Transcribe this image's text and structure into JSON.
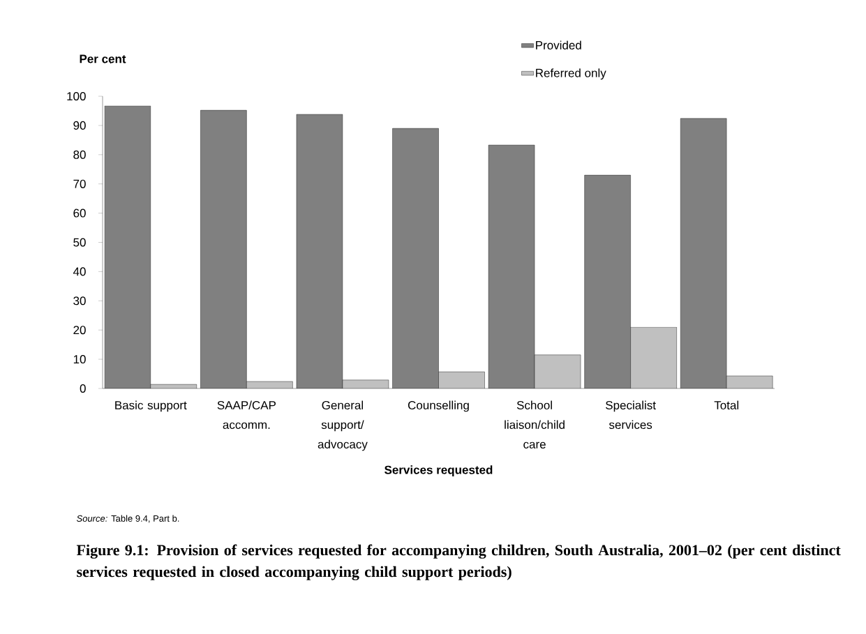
{
  "chart_data": {
    "type": "bar",
    "title": "Figure 9.1: Provision of services requested for accompanying children, South Australia, 2001–02 (per cent distinct services requested in closed accompanying child support periods)",
    "ylabel": "Per cent",
    "xlabel": "Services requested",
    "annotations": [
      "*Source:* Table 9.4, Part b."
    ],
    "categories": [
      "Basic support",
      "SAAP/CAP accomm.",
      "General support/ advocacy",
      "Counselling",
      "School liaison/child care",
      "Specialist services",
      "Total"
    ],
    "series": [
      {
        "name": "Provided",
        "color": "#808080",
        "values": [
          96.7,
          95.2,
          93.8,
          89.0,
          83.3,
          73.0,
          92.4
        ]
      },
      {
        "name": "Referred only",
        "color": "#c0c0c0",
        "values": [
          1.4,
          2.4,
          2.9,
          5.7,
          11.5,
          21.0,
          4.3
        ]
      }
    ],
    "ylim": [
      0,
      100
    ],
    "yticks": [
      0,
      10,
      20,
      30,
      40,
      50,
      60,
      70,
      80,
      90,
      100
    ],
    "legend": "top"
  }
}
